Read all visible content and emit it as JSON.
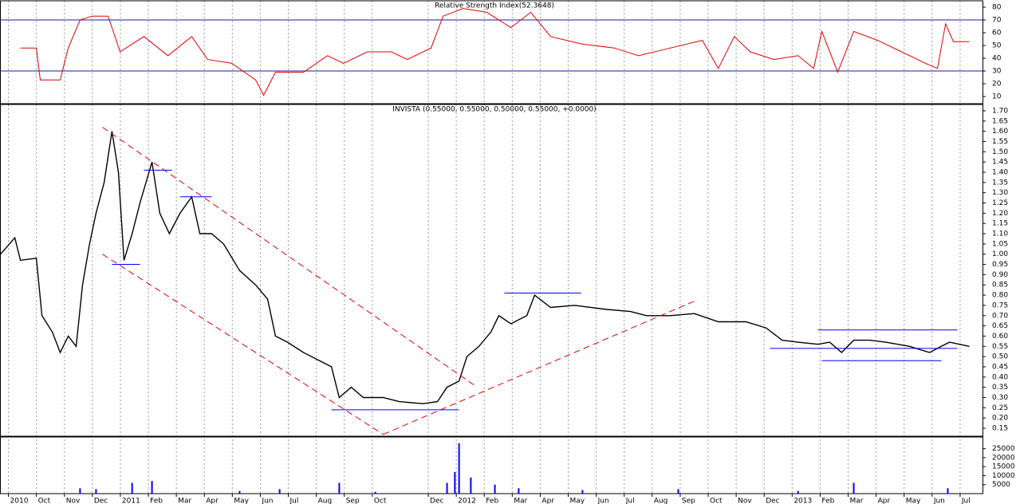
{
  "chart_data": [
    {
      "type": "line",
      "title": "Relative Strength Index(52.3648)",
      "color": "#e00000",
      "level_color": "#1a1aa0",
      "levels": [
        30,
        70
      ],
      "x": [
        0.43,
        1.0,
        1.14,
        1.85,
        2.14,
        2.56,
        2.99,
        3.56,
        3.99,
        4.84,
        5.7,
        6.55,
        7.12,
        7.98,
        8.83,
        9.12,
        9.54,
        10.54,
        11.4,
        11.97,
        12.82,
        13.68,
        14.25,
        15.1,
        15.53,
        16.24,
        17.09,
        17.95,
        18.66,
        19.37,
        20.51,
        21.65,
        22.51,
        23.65,
        24.79,
        25.36,
        25.93,
        26.5,
        27.35,
        28.21,
        28.77,
        29.06,
        29.63,
        30.2,
        31.05,
        31.91,
        32.76,
        33.19,
        33.48,
        33.76,
        34.33
      ],
      "values": [
        48,
        48,
        23,
        23,
        48,
        70,
        73,
        73,
        45,
        57,
        42,
        57,
        39,
        36,
        23,
        11,
        29,
        29,
        42,
        36,
        45,
        45,
        39,
        48,
        73,
        79,
        76,
        64,
        76,
        57,
        51,
        48,
        42,
        48,
        54,
        32,
        57,
        45,
        39,
        42,
        32,
        61,
        29,
        61,
        54,
        45,
        36,
        32,
        67,
        53,
        53
      ],
      "ylim": [
        4.4,
        85
      ],
      "yticks": [
        10,
        20,
        30,
        40,
        50,
        60,
        70,
        80
      ],
      "xlim": [
        -0.3,
        34.8
      ]
    },
    {
      "type": "line",
      "title": "INVISTA (0.55000, 0.55000, 0.50000, 0.55000, +0.0000)",
      "color": "#000000",
      "x": [
        -0.28,
        0.23,
        0.43,
        1.0,
        1.2,
        1.57,
        1.85,
        2.14,
        2.42,
        2.65,
        2.9,
        3.13,
        3.42,
        3.7,
        3.93,
        4.13,
        4.42,
        4.7,
        5.13,
        5.41,
        5.75,
        6.13,
        6.55,
        6.84,
        7.26,
        7.69,
        8.26,
        8.83,
        9.26,
        9.54,
        9.97,
        10.54,
        11.11,
        11.54,
        11.82,
        12.25,
        12.68,
        13.39,
        13.96,
        14.81,
        15.33,
        15.67,
        16.1,
        16.38,
        16.81,
        17.24,
        17.52,
        17.95,
        18.52,
        18.8,
        19.37,
        20.23,
        21.37,
        22.22,
        22.79,
        23.65,
        24.5,
        25.36,
        26.35,
        27.07,
        27.64,
        28.21,
        28.92,
        29.34,
        29.77,
        30.2,
        30.77,
        31.34,
        32.19,
        32.91,
        33.33,
        33.62,
        34.33
      ],
      "values": [
        1.0,
        1.08,
        0.97,
        0.98,
        0.7,
        0.62,
        0.52,
        0.6,
        0.55,
        0.85,
        1.05,
        1.2,
        1.35,
        1.6,
        1.4,
        0.97,
        1.1,
        1.25,
        1.45,
        1.2,
        1.1,
        1.2,
        1.28,
        1.1,
        1.1,
        1.05,
        0.92,
        0.85,
        0.78,
        0.6,
        0.57,
        0.52,
        0.48,
        0.45,
        0.3,
        0.35,
        0.3,
        0.3,
        0.28,
        0.27,
        0.28,
        0.35,
        0.38,
        0.5,
        0.55,
        0.62,
        0.7,
        0.66,
        0.7,
        0.8,
        0.74,
        0.75,
        0.73,
        0.72,
        0.7,
        0.7,
        0.71,
        0.67,
        0.67,
        0.64,
        0.58,
        0.57,
        0.56,
        0.57,
        0.52,
        0.58,
        0.58,
        0.57,
        0.55,
        0.52,
        0.55,
        0.57,
        0.55
      ],
      "lines": [
        {
          "x": [
            3.36,
            16.75
          ],
          "values": [
            1.62,
            0.35
          ],
          "color": "#e00000",
          "dashed": true
        },
        {
          "x": [
            3.36,
            13.39
          ],
          "values": [
            1.0,
            0.12
          ],
          "color": "#e00000",
          "dashed": true
        },
        {
          "x": [
            13.39,
            24.5
          ],
          "values": [
            0.12,
            0.77
          ],
          "color": "#e00000",
          "dashed": true
        },
        {
          "x": [
            3.7,
            4.7
          ],
          "values": [
            0.95,
            0.95
          ],
          "color": "#0000ff",
          "dashed": false
        },
        {
          "x": [
            4.84,
            5.84
          ],
          "values": [
            1.41,
            1.41
          ],
          "color": "#0000ff",
          "dashed": false
        },
        {
          "x": [
            6.13,
            7.26
          ],
          "values": [
            1.28,
            1.28
          ],
          "color": "#0000ff",
          "dashed": false
        },
        {
          "x": [
            11.54,
            16.1
          ],
          "values": [
            0.24,
            0.24
          ],
          "color": "#0000ff",
          "dashed": false
        },
        {
          "x": [
            17.72,
            20.46
          ],
          "values": [
            0.81,
            0.81
          ],
          "color": "#0000ff",
          "dashed": false
        },
        {
          "x": [
            27.21,
            33.9
          ],
          "values": [
            0.54,
            0.54
          ],
          "color": "#0000ff",
          "dashed": false
        },
        {
          "x": [
            28.92,
            33.9
          ],
          "values": [
            0.63,
            0.63
          ],
          "color": "#0000ff",
          "dashed": false
        },
        {
          "x": [
            29.06,
            33.33
          ],
          "values": [
            0.48,
            0.48
          ],
          "color": "#0000ff",
          "dashed": false
        }
      ],
      "ylim": [
        0.111,
        1.731
      ],
      "yticks": [
        0.15,
        {
          "value": 0.2,
          "label": "0.20"
        },
        0.25,
        {
          "value": 0.3,
          "label": "0.30"
        },
        0.35,
        {
          "value": 0.4,
          "label": "0.40"
        },
        0.45,
        {
          "value": 0.5,
          "label": "0.50"
        },
        0.55,
        {
          "value": 0.6,
          "label": "0.60"
        },
        0.65,
        {
          "value": 0.7,
          "label": "0.70"
        },
        0.75,
        {
          "value": 0.8,
          "label": "0.80"
        },
        0.85,
        {
          "value": 0.9,
          "label": "0.90"
        },
        0.95,
        {
          "value": 1,
          "label": "1.00"
        },
        1.05,
        {
          "value": 1.1,
          "label": "1.10"
        },
        1.15,
        {
          "value": 1.2,
          "label": "1.20"
        },
        1.25,
        {
          "value": 1.3,
          "label": "1.30"
        },
        1.35,
        {
          "value": 1.4,
          "label": "1.40"
        },
        1.45,
        {
          "value": 1.5,
          "label": "1.50"
        },
        1.55,
        {
          "value": 1.6,
          "label": "1.60"
        },
        1.65,
        {
          "value": 1.7,
          "label": "1.70"
        }
      ],
      "xlim": [
        -0.3,
        34.8
      ]
    },
    {
      "type": "bar",
      "color": "#0000ff",
      "x": [
        2.56,
        3.13,
        4.42,
        5.13,
        8.26,
        9.69,
        11.82,
        13.11,
        15.67,
        15.95,
        16.1,
        16.52,
        17.38,
        18.23,
        20.51,
        23.93,
        28.21,
        30.2,
        33.56
      ],
      "values": [
        3000,
        2500,
        6000,
        7000,
        1500,
        2500,
        6000,
        1000,
        6000,
        12000,
        28000,
        9000,
        5000,
        3000,
        2000,
        2500,
        1500,
        6000,
        3000
      ],
      "ylim": [
        0,
        31500
      ],
      "yticks": [
        5000,
        10000,
        15000,
        20000,
        25000
      ],
      "xlim": [
        -0.3,
        34.8
      ],
      "grid": true,
      "xticks": [
        {
          "value": 0,
          "label": "2010"
        },
        {
          "value": 1,
          "label": "Oct"
        },
        {
          "value": 2,
          "label": "Nov"
        },
        {
          "value": 3,
          "label": "Dec"
        },
        {
          "value": 4,
          "label": "2011"
        },
        {
          "value": 5,
          "label": "Feb"
        },
        {
          "value": 6,
          "label": "Mar"
        },
        {
          "value": 7,
          "label": "Apr"
        },
        {
          "value": 8,
          "label": "May"
        },
        {
          "value": 9,
          "label": "Jun"
        },
        {
          "value": 10,
          "label": "Jul"
        },
        {
          "value": 11,
          "label": "Aug"
        },
        {
          "value": 12,
          "label": "Sep"
        },
        {
          "value": 13,
          "label": "Oct"
        },
        {
          "value": 15,
          "label": "Dec"
        },
        {
          "value": 16,
          "label": "2012"
        },
        {
          "value": 17,
          "label": "Feb"
        },
        {
          "value": 18,
          "label": "Mar"
        },
        {
          "value": 19,
          "label": "Apr"
        },
        {
          "value": 20,
          "label": "May"
        },
        {
          "value": 21,
          "label": "Jun"
        },
        {
          "value": 22,
          "label": "Jul"
        },
        {
          "value": 23,
          "label": "Aug"
        },
        {
          "value": 24,
          "label": "Sep"
        },
        {
          "value": 25,
          "label": "Oct"
        },
        {
          "value": 26,
          "label": "Nov"
        },
        {
          "value": 27,
          "label": "Dec"
        },
        {
          "value": 28,
          "label": "2013"
        },
        {
          "value": 29,
          "label": "Feb"
        },
        {
          "value": 30,
          "label": "Mar"
        },
        {
          "value": 31,
          "label": "Apr"
        },
        {
          "value": 32,
          "label": "May"
        },
        {
          "value": 33,
          "label": "Jun"
        },
        {
          "value": 34,
          "label": "Jul"
        }
      ]
    }
  ]
}
